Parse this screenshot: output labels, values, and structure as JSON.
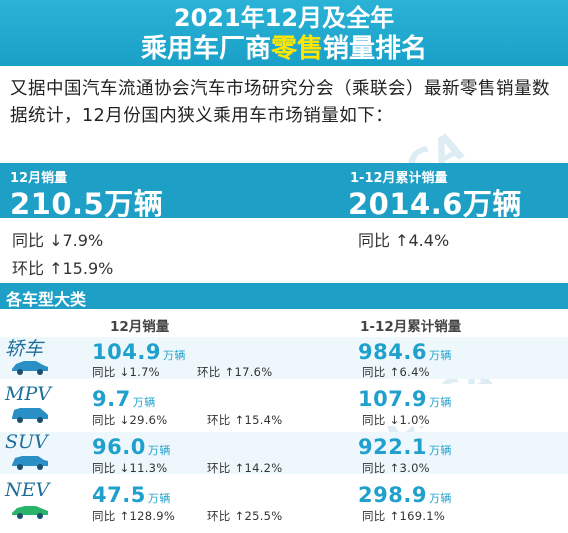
{
  "title": {
    "line1": "2021年12月及全年",
    "line2_pre": "乘用车厂商",
    "line2_highlight": "零售",
    "line2_post": "销量排名"
  },
  "intro": "又据中国汽车流通协会汽车市场研究分会（乘联会）最新零售销量数据统计，12月份国内狭义乘用车市场销量如下：",
  "summary": {
    "month_label": "12月销量",
    "month_value": "210.5万辆",
    "month_yoy": "同比 ↓7.9%",
    "month_mom": "环比 ↑15.9%",
    "ytd_label": "1-12月累计销量",
    "ytd_value": "2014.6万辆",
    "ytd_yoy": "同比 ↑4.4%"
  },
  "section_title": "各车型大类",
  "col_month": "12月销量",
  "col_ytd": "1-12月累计销量",
  "unit": "万辆",
  "rows": [
    {
      "type": "轿车",
      "m_val": "104.9",
      "m_yoy": "同比 ↓1.7%",
      "m_mom": "环比 ↑17.6%",
      "y_val": "984.6",
      "y_yoy": "同比 ↑6.4%"
    },
    {
      "type": "MPV",
      "m_val": "9.7",
      "m_yoy": "同比 ↓29.6%",
      "m_mom": "环比 ↑15.4%",
      "y_val": "107.9",
      "y_yoy": "同比 ↓1.0%"
    },
    {
      "type": "SUV",
      "m_val": "96.0",
      "m_yoy": "同比 ↓11.3%",
      "m_mom": "环比 ↑14.2%",
      "y_val": "922.1",
      "y_yoy": "同比 ↑3.0%"
    },
    {
      "type": "NEV",
      "m_val": "47.5",
      "m_yoy": "同比 ↑128.9%",
      "m_mom": "环比 ↑25.5%",
      "y_val": "298.9",
      "y_yoy": "同比 ↑169.1%"
    }
  ],
  "watermark": "CPCA",
  "colors": {
    "accent": "#1e9fc6",
    "highlight": "#ffe600",
    "value": "#20a0cc",
    "type_text": "#1e6e9a"
  }
}
